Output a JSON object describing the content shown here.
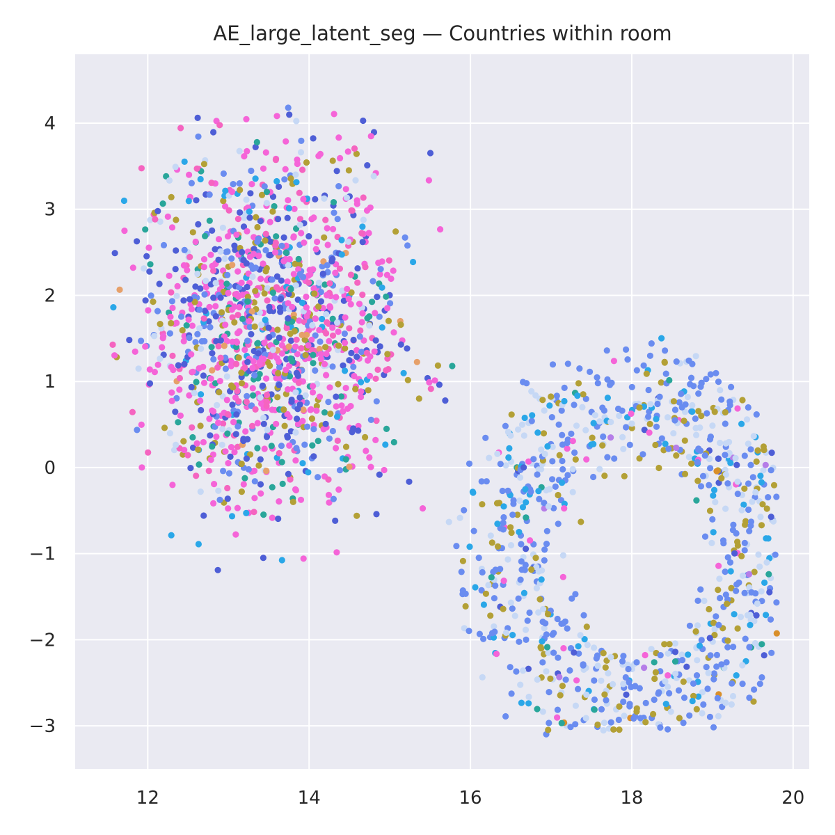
{
  "chart_data": {
    "type": "scatter",
    "title": "AE_large_latent_seg — Countries within room",
    "xlabel": "",
    "ylabel": "",
    "xlim": [
      11.1,
      20.2
    ],
    "ylim": [
      -3.5,
      4.8
    ],
    "x_ticks": [
      12,
      14,
      16,
      18,
      20
    ],
    "y_ticks": [
      -3,
      -2,
      -1,
      0,
      1,
      2,
      3,
      4
    ],
    "x_tick_labels": [
      "12",
      "14",
      "16",
      "18",
      "20"
    ],
    "y_tick_labels": [
      "−3",
      "−2",
      "−1",
      "0",
      "1",
      "2",
      "3",
      "4"
    ],
    "grid": true,
    "legend": "none",
    "background_color": "#eaeaf2",
    "grid_color": "#ffffff",
    "clusters": [
      {
        "name_hint": "left-cluster",
        "center": [
          13.5,
          1.6
        ],
        "spread": [
          0.8,
          1.0
        ],
        "x_range": [
          11.5,
          15.8
        ],
        "y_range": [
          -1.2,
          4.4
        ],
        "count": 1400,
        "colors": [
          "#f564d8",
          "#f564c0",
          "#4e5ed6",
          "#6a8cf0",
          "#b3a036",
          "#29a69a",
          "#2aa7e8",
          "#c6d8f5",
          "#e6a06a"
        ],
        "weights": [
          0.3,
          0.1,
          0.17,
          0.12,
          0.09,
          0.08,
          0.05,
          0.07,
          0.02
        ]
      },
      {
        "name_hint": "right-cluster",
        "center": [
          18.0,
          -1.0
        ],
        "spread": [
          1.0,
          1.0
        ],
        "x_range": [
          15.2,
          19.8
        ],
        "y_range": [
          -3.1,
          1.9
        ],
        "count": 900,
        "colors": [
          "#6a8cf0",
          "#c6d8f5",
          "#b3a036",
          "#2aa7e8",
          "#4e5ed6",
          "#29a69a",
          "#f564d8",
          "#d98f2a",
          "#b57de8"
        ],
        "weights": [
          0.42,
          0.23,
          0.17,
          0.08,
          0.03,
          0.03,
          0.02,
          0.01,
          0.01
        ]
      }
    ]
  }
}
